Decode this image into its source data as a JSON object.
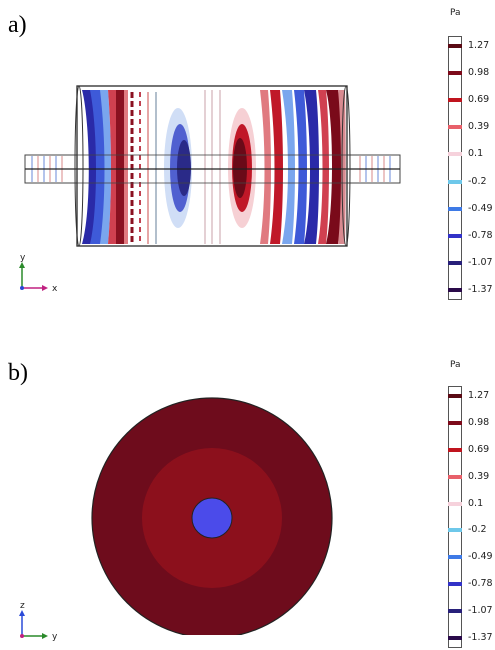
{
  "panels": [
    {
      "label": "a)",
      "unit": "Pa",
      "axis": {
        "vertical": "y",
        "horizontal": "x"
      },
      "scale": {
        "ticks": [
          "1.27",
          "0.98",
          "0.69",
          "0.39",
          "0.1",
          "-0.2",
          "-0.49",
          "-0.78",
          "-1.07",
          "-1.37"
        ],
        "colors": [
          "#5a0a14",
          "#7d0a1a",
          "#c0141e",
          "#e8606a",
          "#f6d2dc",
          "#6ec8ea",
          "#3e7ae6",
          "#3232c8",
          "#28207a",
          "#2a0a4a"
        ]
      }
    },
    {
      "label": "b)",
      "unit": "Pa",
      "axis": {
        "vertical": "z",
        "horizontal": "y"
      },
      "scale": {
        "ticks": [
          "1.27",
          "0.98",
          "0.69",
          "0.39",
          "0.1",
          "-0.2",
          "-0.49",
          "-0.78",
          "-1.07",
          "-1.37"
        ],
        "colors": [
          "#5a0a14",
          "#7d0a1a",
          "#c0141e",
          "#e8606a",
          "#f6d2dc",
          "#6ec8ea",
          "#3e7ae6",
          "#3232c8",
          "#28207a",
          "#2a0a4a"
        ]
      },
      "regions": {
        "outer": "#6e0c1c",
        "middle": "#8c101c",
        "inner": "#4b4bea"
      }
    }
  ]
}
